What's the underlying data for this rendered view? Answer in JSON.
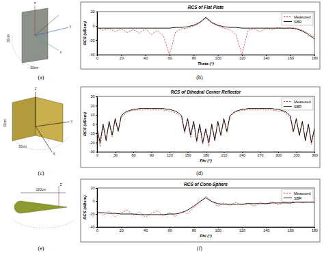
{
  "chart_data": [
    {
      "type": "line",
      "title": "RCS of Flat Plate",
      "x_label": "Theta (°)",
      "y_label": "RCS (dBsm)",
      "x": [
        0,
        5,
        10,
        15,
        20,
        25,
        30,
        35,
        40,
        45,
        50,
        55,
        60,
        65,
        70,
        75,
        80,
        85,
        90,
        95,
        100,
        105,
        110,
        115,
        120,
        125,
        130,
        135,
        140,
        145,
        150,
        155,
        160,
        165,
        170,
        175,
        180
      ],
      "series": [
        {
          "name": "Measured",
          "color": "#e0403a",
          "line_style": "dashed",
          "values": [
            -2,
            -6,
            -3,
            -8,
            -4,
            -9,
            -5,
            -10,
            -4,
            -12,
            -6,
            -14,
            -40,
            -8,
            -4,
            -3,
            0,
            4,
            11,
            4,
            0,
            -3,
            -5,
            -12,
            -40,
            -6,
            -4,
            -8,
            -3,
            -5,
            -2,
            -4,
            -2,
            -3,
            -6,
            -10,
            -16
          ]
        },
        {
          "name": "SBR",
          "color": "#000000",
          "line_style": "solid",
          "values": [
            -3,
            -3,
            -3,
            -3,
            -3,
            -3,
            -3,
            -3,
            -3,
            -3,
            -3,
            -3,
            -3,
            -2,
            -2,
            -1,
            1,
            5,
            12,
            5,
            1,
            -1,
            -2,
            -2,
            -3,
            -3,
            -3,
            -3,
            -3,
            -3,
            -3,
            -3,
            -3,
            -4,
            -7,
            -12,
            -18
          ]
        }
      ],
      "xlim": [
        0,
        180
      ],
      "xticks": [
        0,
        20,
        40,
        60,
        80,
        100,
        120,
        140,
        160,
        180
      ],
      "ylim": [
        -40,
        20
      ],
      "yticks": [
        -40,
        -20,
        0,
        20
      ],
      "grid": false,
      "legend": "top-right"
    },
    {
      "type": "line",
      "title": "RCS of Dihedral Corner Reflector",
      "x_label": "Phi (°)",
      "y_label": "RCS (dBsm)",
      "x": [
        0,
        5,
        10,
        15,
        20,
        25,
        30,
        35,
        40,
        45,
        50,
        55,
        60,
        65,
        70,
        75,
        80,
        85,
        90,
        95,
        100,
        105,
        110,
        115,
        120,
        125,
        130,
        135,
        140,
        145,
        150,
        155,
        160,
        165,
        170,
        175,
        180,
        185,
        190,
        195,
        200,
        205,
        210,
        215,
        220,
        225,
        230,
        235,
        240,
        245,
        250,
        255,
        260,
        265,
        270,
        275,
        280,
        285,
        290,
        295,
        300,
        305,
        310,
        315,
        320,
        325,
        330,
        335,
        340,
        345,
        350,
        355,
        360
      ],
      "series": [
        {
          "name": "Measured",
          "color": "#e0403a",
          "line_style": "dashed",
          "values": [
            -8,
            -25,
            -3,
            -15,
            1,
            -14,
            4,
            -6,
            7,
            10,
            13,
            14,
            15,
            15,
            16,
            15,
            16,
            16,
            15,
            16,
            15,
            16,
            15,
            15,
            14,
            14,
            12,
            10,
            7,
            -10,
            4,
            -15,
            1,
            -20,
            -3,
            -22,
            -6,
            -24,
            -2,
            -16,
            2,
            -13,
            5,
            -9,
            8,
            11,
            13,
            14,
            15,
            15,
            16,
            15,
            16,
            15,
            16,
            16,
            15,
            16,
            15,
            15,
            14,
            14,
            13,
            10,
            7,
            -9,
            5,
            -13,
            2,
            -17,
            -1,
            -22,
            -7
          ]
        },
        {
          "name": "SBR",
          "color": "#000000",
          "line_style": "solid",
          "values": [
            -5,
            -20,
            0,
            -18,
            3,
            -12,
            6,
            -8,
            9,
            12,
            14,
            15,
            16,
            16,
            17,
            17,
            17,
            17,
            17,
            17,
            17,
            17,
            17,
            16,
            16,
            15,
            14,
            12,
            9,
            -8,
            6,
            -12,
            3,
            -18,
            0,
            -20,
            -5,
            -20,
            0,
            -18,
            3,
            -12,
            6,
            -8,
            9,
            12,
            14,
            15,
            16,
            16,
            17,
            17,
            17,
            17,
            17,
            17,
            17,
            17,
            17,
            16,
            16,
            15,
            14,
            12,
            9,
            -8,
            6,
            -12,
            3,
            -18,
            0,
            -20,
            -5
          ]
        }
      ],
      "xlim": [
        0,
        360
      ],
      "xticks": [
        0,
        30,
        60,
        90,
        120,
        150,
        180,
        210,
        240,
        270,
        300,
        330,
        360
      ],
      "ylim": [
        -30,
        30
      ],
      "yticks": [
        -30,
        -20,
        -10,
        0,
        10,
        20,
        30
      ],
      "grid": false,
      "legend": "top-right"
    },
    {
      "type": "line",
      "title": "RCS of Cone-Sphere",
      "x_label": "Phi (°)",
      "y_label": "RCS (dBsm)",
      "x": [
        0,
        5,
        10,
        15,
        20,
        25,
        30,
        35,
        40,
        45,
        50,
        55,
        60,
        65,
        70,
        75,
        80,
        85,
        90,
        95,
        100,
        105,
        110,
        115,
        120,
        125,
        130,
        135,
        140,
        145,
        150,
        155,
        160,
        165,
        170,
        175,
        180
      ],
      "series": [
        {
          "name": "Measured",
          "color": "#e0403a",
          "line_style": "dashed",
          "values": [
            -15,
            -22,
            -16,
            -24,
            -18,
            -14,
            -22,
            -17,
            -25,
            -19,
            -15,
            -23,
            -18,
            -24,
            -16,
            -20,
            -10,
            -3,
            7,
            0,
            -8,
            -3,
            -7,
            -2,
            -6,
            -3,
            -8,
            -2,
            -5,
            -1,
            -6,
            -2,
            -4,
            0,
            -3,
            -1,
            -2
          ]
        },
        {
          "name": "SBR",
          "color": "#000000",
          "line_style": "solid",
          "values": [
            -18,
            -18,
            -19,
            -19,
            -20,
            -20,
            -20,
            -21,
            -21,
            -21,
            -21,
            -21,
            -20,
            -20,
            -18,
            -14,
            -8,
            -1,
            5,
            -1,
            -4,
            -5,
            -5,
            -5,
            -5,
            -4,
            -4,
            -4,
            -4,
            -3,
            -3,
            -3,
            -3,
            -2,
            -2,
            -2,
            -2
          ]
        }
      ],
      "xlim": [
        0,
        180
      ],
      "xticks": [
        0,
        20,
        40,
        60,
        80,
        100,
        120,
        140,
        160,
        180
      ],
      "ylim": [
        -40,
        20
      ],
      "yticks": [
        -40,
        -20,
        0,
        20
      ],
      "grid": false,
      "legend": "top-right"
    }
  ],
  "panel_labels": [
    "(a)",
    "(b)",
    "(c)",
    "(d)",
    "(e)",
    "(f)"
  ],
  "illustration_labels": [
    [
      "z",
      "y",
      "x",
      "30cm",
      "30cm"
    ],
    [
      "Z",
      "Y",
      "X",
      "30cm",
      "30cm"
    ],
    [
      "183cm",
      "Z"
    ]
  ]
}
